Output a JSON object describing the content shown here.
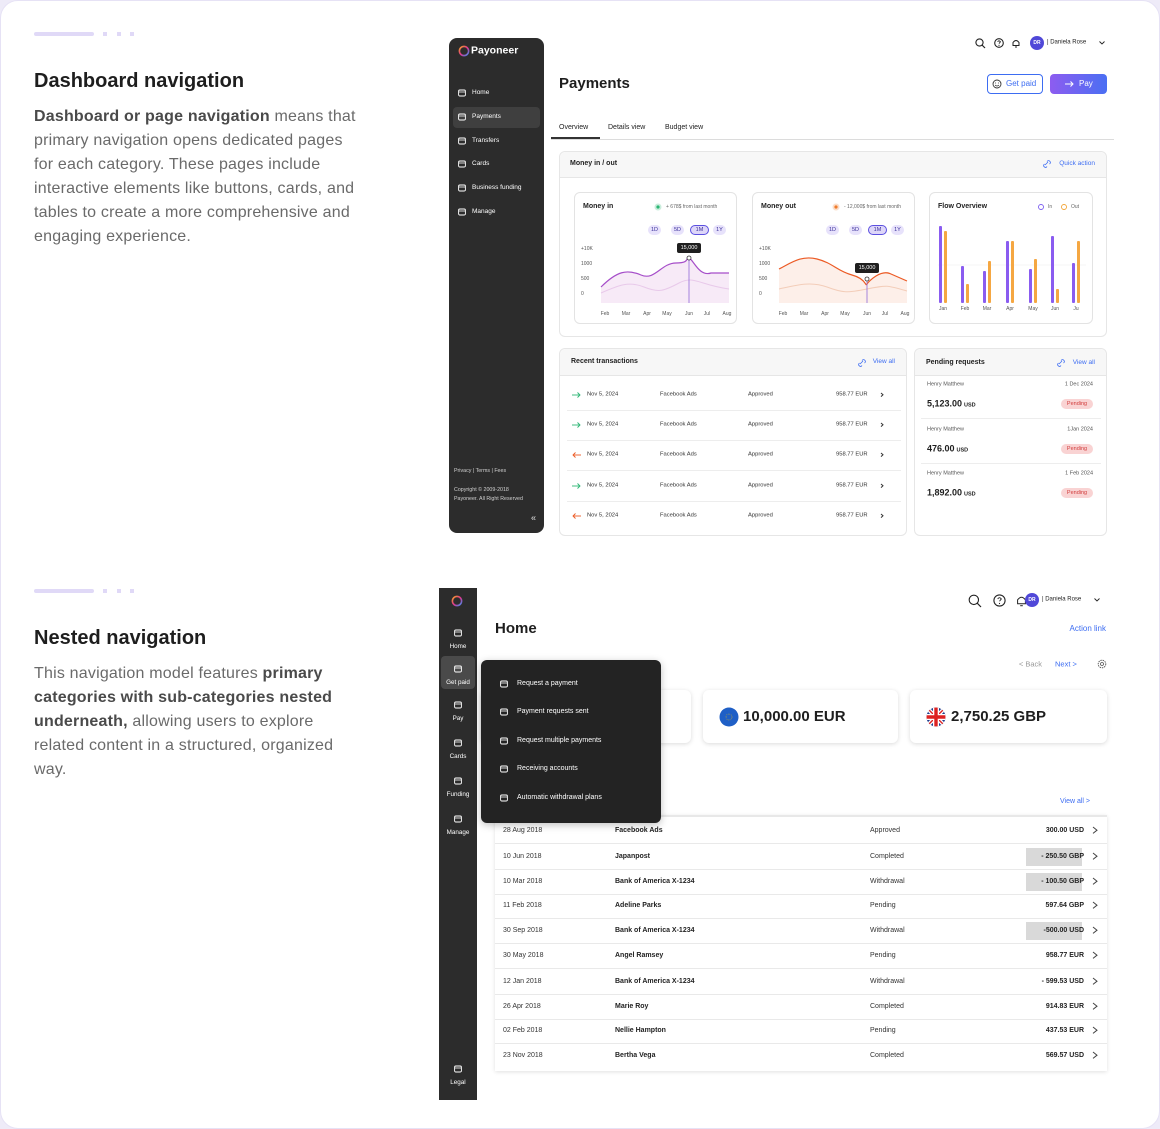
{
  "sections": [
    {
      "title": "Dashboard navigation",
      "body": [
        {
          "text": "Dashboard or page navigation",
          "bold": true
        },
        {
          "text": " means that primary navigation opens dedicated pages for each category. These pages include interactive elements like buttons, cards, and tables to create a more comprehensive and engaging experience.",
          "bold": false
        }
      ]
    },
    {
      "title": "Nested navigation",
      "body": [
        {
          "text": "This navigation model features ",
          "bold": false
        },
        {
          "text": "primary categories with sub-categories nested underneath,",
          "bold": true
        },
        {
          "text": " allowing users to explore related content in a structured, organized way.",
          "bold": false
        }
      ]
    }
  ],
  "dashboard": {
    "sidebar": {
      "logo": "Payoneer",
      "items": [
        "Home",
        "Payments",
        "Transfers",
        "Cards",
        "Business funding",
        "Manage"
      ],
      "active": 1,
      "footer": [
        "Privacy | Terms | Fees",
        "Copyright © 2009-2018",
        "Payoneer. All Right Reserved"
      ],
      "collapse": "«"
    },
    "user": {
      "initials": "DR",
      "name": "| Daniela Rose"
    },
    "title": "Payments",
    "actions": [
      "Get paid",
      "Pay"
    ],
    "tabs": [
      "Overview",
      "Details view",
      "Budget view"
    ],
    "active_tab": 0,
    "overview": {
      "title": "Money in / out",
      "link": "Quick action",
      "money_in": {
        "title": "Money in",
        "change": "+ 678$ from last month",
        "ranges": [
          "1D",
          "5D",
          "1M",
          "1Y"
        ],
        "active_range": 2,
        "yticks": [
          "+10K",
          "1000",
          "500",
          "0"
        ],
        "months": [
          "Feb",
          "Mar",
          "Apr",
          "May",
          "Jun",
          "Jul",
          "Aug"
        ],
        "tooltip": "15,000"
      },
      "money_out": {
        "title": "Money out",
        "change": "- 12,000$ from last month",
        "ranges": [
          "1D",
          "5D",
          "1M",
          "1Y"
        ],
        "active_range": 2,
        "yticks": [
          "+10K",
          "1000",
          "500",
          "0"
        ],
        "months": [
          "Feb",
          "Mar",
          "Apr",
          "May",
          "Jun",
          "Jul",
          "Aug"
        ],
        "tooltip": "15,000"
      },
      "flow": {
        "title": "Flow Overview",
        "legend": [
          "In",
          "Out"
        ],
        "months": [
          "Jan",
          "Feb",
          "Mar",
          "Apr",
          "May",
          "Jun",
          "Ju"
        ]
      }
    },
    "transactions": {
      "title": "Recent transactions",
      "link": "View all",
      "rows": [
        {
          "direction": "in",
          "date": "Nov 5, 2024",
          "merchant": "Facebook Ads",
          "status": "Approved",
          "amount": "958.77 EUR"
        },
        {
          "direction": "in",
          "date": "Nov 5, 2024",
          "merchant": "Facebook Ads",
          "status": "Approved",
          "amount": "958.77 EUR"
        },
        {
          "direction": "out",
          "date": "Nov 5, 2024",
          "merchant": "Facebook Ads",
          "status": "Approved",
          "amount": "958.77 EUR"
        },
        {
          "direction": "in",
          "date": "Nov 5, 2024",
          "merchant": "Facebook Ads",
          "status": "Approved",
          "amount": "958.77 EUR"
        },
        {
          "direction": "out",
          "date": "Nov 5, 2024",
          "merchant": "Facebook Ads",
          "status": "Approved",
          "amount": "958.77 EUR"
        }
      ]
    },
    "pending": {
      "title": "Pending requests",
      "link": "View all",
      "items": [
        {
          "name": "Henry Matthew",
          "date": "1 Dec 2024",
          "amount": "5,123.00",
          "currency": "USD",
          "status": "Pending"
        },
        {
          "name": "Henry Matthew",
          "date": "1Jan 2024",
          "amount": "476.00",
          "currency": "USD",
          "status": "Pending"
        },
        {
          "name": "Henry Matthew",
          "date": "1 Feb 2024",
          "amount": "1,892.00",
          "currency": "USD",
          "status": "Pending"
        }
      ]
    }
  },
  "nested": {
    "sidebar": {
      "items": [
        "Home",
        "Get paid",
        "Pay",
        "Cards",
        "Funding",
        "Manage"
      ],
      "active": 1,
      "bottom": "Legal"
    },
    "user": {
      "initials": "DR",
      "name": "| Daniela Rose"
    },
    "title": "Home",
    "action_link": "Action link",
    "pager": [
      "< Back",
      "Next >"
    ],
    "balances": [
      "10,000.00 EUR",
      "2,750.25 GBP"
    ],
    "menu": [
      "Request a payment",
      "Payment requests sent",
      "Request multiple payments",
      "Receiving accounts",
      "Automatic withdrawal plans"
    ],
    "table": {
      "link": "View all >",
      "rows": [
        {
          "date": "28 Aug 2018",
          "name": "Facebook Ads",
          "status": "Approved",
          "amount": "300.00 USD",
          "highlight": false
        },
        {
          "date": "10 Jun 2018",
          "name": "Japanpost",
          "status": "Completed",
          "amount": "- 250.50 GBP",
          "highlight": true
        },
        {
          "date": "10 Mar 2018",
          "name": "Bank of America X-1234",
          "status": "Withdrawal",
          "amount": "- 100.50 GBP",
          "highlight": true
        },
        {
          "date": "11 Feb 2018",
          "name": "Adeline Parks",
          "status": "Pending",
          "amount": "597.64 GBP",
          "highlight": false
        },
        {
          "date": "30 Sep 2018",
          "name": "Bank of America X-1234",
          "status": "Withdrawal",
          "amount": "-500.00 USD",
          "highlight": true
        },
        {
          "date": "30 May 2018",
          "name": "Angel Ramsey",
          "status": "Pending",
          "amount": "958.77 EUR",
          "highlight": false
        },
        {
          "date": "12 Jan 2018",
          "name": "Bank of America X-1234",
          "status": "Withdrawal",
          "amount": "- 599.53 USD",
          "highlight": false
        },
        {
          "date": "26 Apr 2018",
          "name": "Marie Roy",
          "status": "Completed",
          "amount": "914.83 EUR",
          "highlight": false
        },
        {
          "date": "02 Feb 2018",
          "name": "Nellie Hampton",
          "status": "Pending",
          "amount": "437.53 EUR",
          "highlight": false
        },
        {
          "date": "23 Nov 2018",
          "name": "Bertha Vega",
          "status": "Completed",
          "amount": "569.57 USD",
          "highlight": false
        }
      ]
    }
  }
}
